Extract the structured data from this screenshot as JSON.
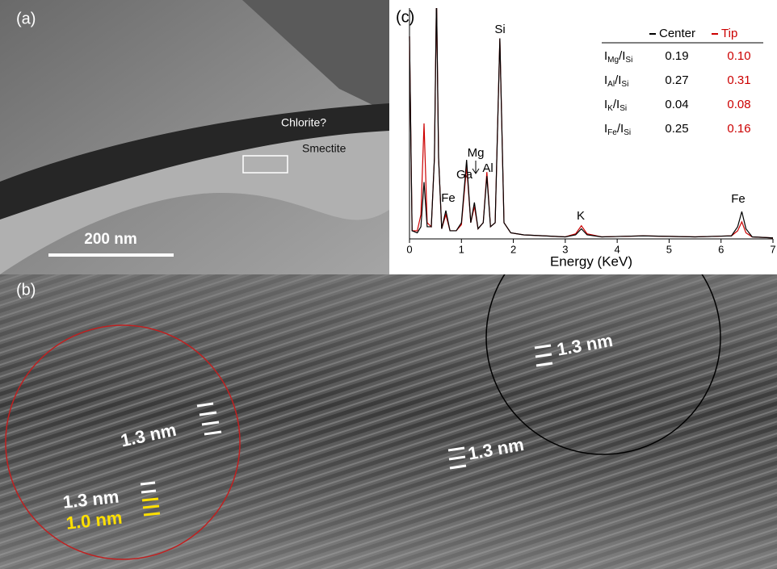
{
  "panel_a": {
    "label": "(a)",
    "annotations": [
      "Chlorite?",
      "Smectite"
    ],
    "scale_bar": "200 nm"
  },
  "panel_b": {
    "label": "(b)",
    "annotations": [
      "1.3 nm",
      "1.3 nm",
      "1.0 nm",
      "1.3 nm",
      "1.3 nm"
    ]
  },
  "panel_c": {
    "label": "(c)",
    "table": {
      "rows": [
        {
          "ratio": [
            "I",
            "Mg",
            "/I",
            "Si"
          ],
          "cells": [
            "0.19",
            "0.10"
          ]
        },
        {
          "ratio": [
            "I",
            "Al",
            "/I",
            "Si"
          ],
          "cells": [
            "0.27",
            "0.31"
          ]
        },
        {
          "ratio": [
            "I",
            "K",
            "/I",
            "Si"
          ],
          "cells": [
            "0.04",
            "0.08"
          ]
        },
        {
          "ratio": [
            "I",
            "Fe",
            "/I",
            "Si"
          ],
          "cells": [
            "0.25",
            "0.16"
          ]
        }
      ]
    }
  },
  "chart_data": {
    "type": "line",
    "x_label": "Energy (KeV)",
    "peak_labels": [
      "Si",
      "Fe",
      "Ga",
      "Mg",
      "Al",
      "K",
      "Fe"
    ],
    "x": [
      0,
      0.05,
      0.15,
      0.22,
      0.28,
      0.34,
      0.42,
      0.48,
      0.52,
      0.56,
      0.62,
      0.7,
      0.78,
      0.9,
      1.0,
      1.1,
      1.18,
      1.25,
      1.32,
      1.42,
      1.49,
      1.56,
      1.65,
      1.74,
      1.82,
      1.95,
      2.2,
      2.6,
      3.0,
      3.2,
      3.31,
      3.42,
      3.7,
      4.5,
      5.5,
      6.2,
      6.32,
      6.4,
      6.48,
      6.6,
      7
    ],
    "series": [
      {
        "name": "Center",
        "color": "#000000",
        "values": [
          100,
          4,
          3,
          6,
          28,
          6,
          6,
          40,
          120,
          40,
          5,
          14,
          4,
          4,
          8,
          39,
          8,
          18,
          5,
          8,
          31,
          6,
          8,
          99,
          8,
          3,
          2,
          1.5,
          1,
          2,
          5,
          2,
          1,
          1.5,
          1,
          1.5,
          6,
          13.5,
          5,
          1,
          0.5
        ]
      },
      {
        "name": "Tip",
        "color": "#cc0000",
        "values": [
          100,
          4,
          4,
          12,
          57,
          8,
          6,
          40,
          120,
          40,
          5,
          12,
          4,
          4,
          7,
          36,
          8,
          16,
          5,
          8,
          33,
          6,
          8,
          99,
          8,
          3,
          2,
          1.5,
          1,
          2.5,
          6.5,
          2.5,
          1,
          1.5,
          1,
          1.5,
          4,
          8.4,
          3,
          1,
          0.5
        ]
      }
    ],
    "xlim": [
      0,
      7
    ],
    "xticks": [
      0,
      1,
      2,
      3,
      4,
      5,
      6,
      7
    ],
    "ylim": [
      0,
      100
    ]
  }
}
